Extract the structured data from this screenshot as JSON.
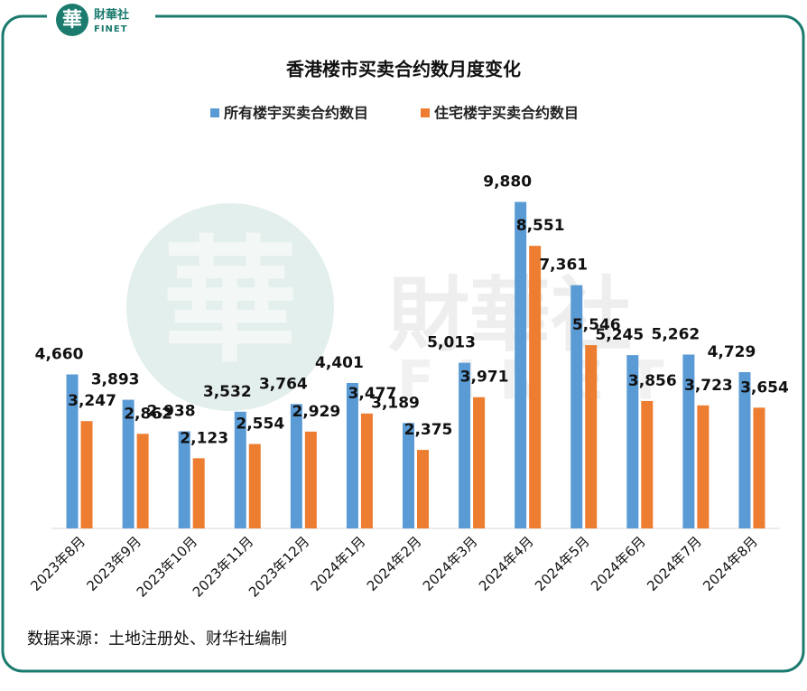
{
  "logo": {
    "mark": "華",
    "name": "財華社",
    "latin": "FINET"
  },
  "chart_data": {
    "type": "bar",
    "title": "香港楼市买卖合约数月度变化",
    "categories": [
      "2023年8月",
      "2023年9月",
      "2023年10月",
      "2023年11月",
      "2023年12月",
      "2024年1月",
      "2024年2月",
      "2024年3月",
      "2024年4月",
      "2024年5月",
      "2024年6月",
      "2024年7月",
      "2024年8月"
    ],
    "series": [
      {
        "name": "所有楼宇买卖合约数目",
        "color": "#5b9bd5",
        "values": [
          4660,
          3893,
          2938,
          3532,
          3764,
          4401,
          3189,
          5013,
          9880,
          7361,
          5245,
          5262,
          4729
        ],
        "value_labels": [
          "4,660",
          "3,893",
          "2,938",
          "3,532",
          "3,764",
          "4,401",
          "3,189",
          "5,013",
          "9,880",
          "7,361",
          "5,245",
          "5,262",
          "4,729"
        ]
      },
      {
        "name": "住宅楼宇买卖合约数目",
        "color": "#ed7d31",
        "values": [
          3247,
          2862,
          2123,
          2554,
          2929,
          3477,
          2375,
          3971,
          8551,
          5546,
          3856,
          3723,
          3654
        ],
        "value_labels": [
          "3,247",
          "2,862",
          "2,123",
          "2,554",
          "2,929",
          "3,477",
          "2,375",
          "3,971",
          "8,551",
          "5,546",
          "3,856",
          "3,723",
          "3,654"
        ]
      }
    ],
    "ylim": [
      0,
      12000
    ],
    "source": "数据来源：土地注册处、财华社编制"
  }
}
